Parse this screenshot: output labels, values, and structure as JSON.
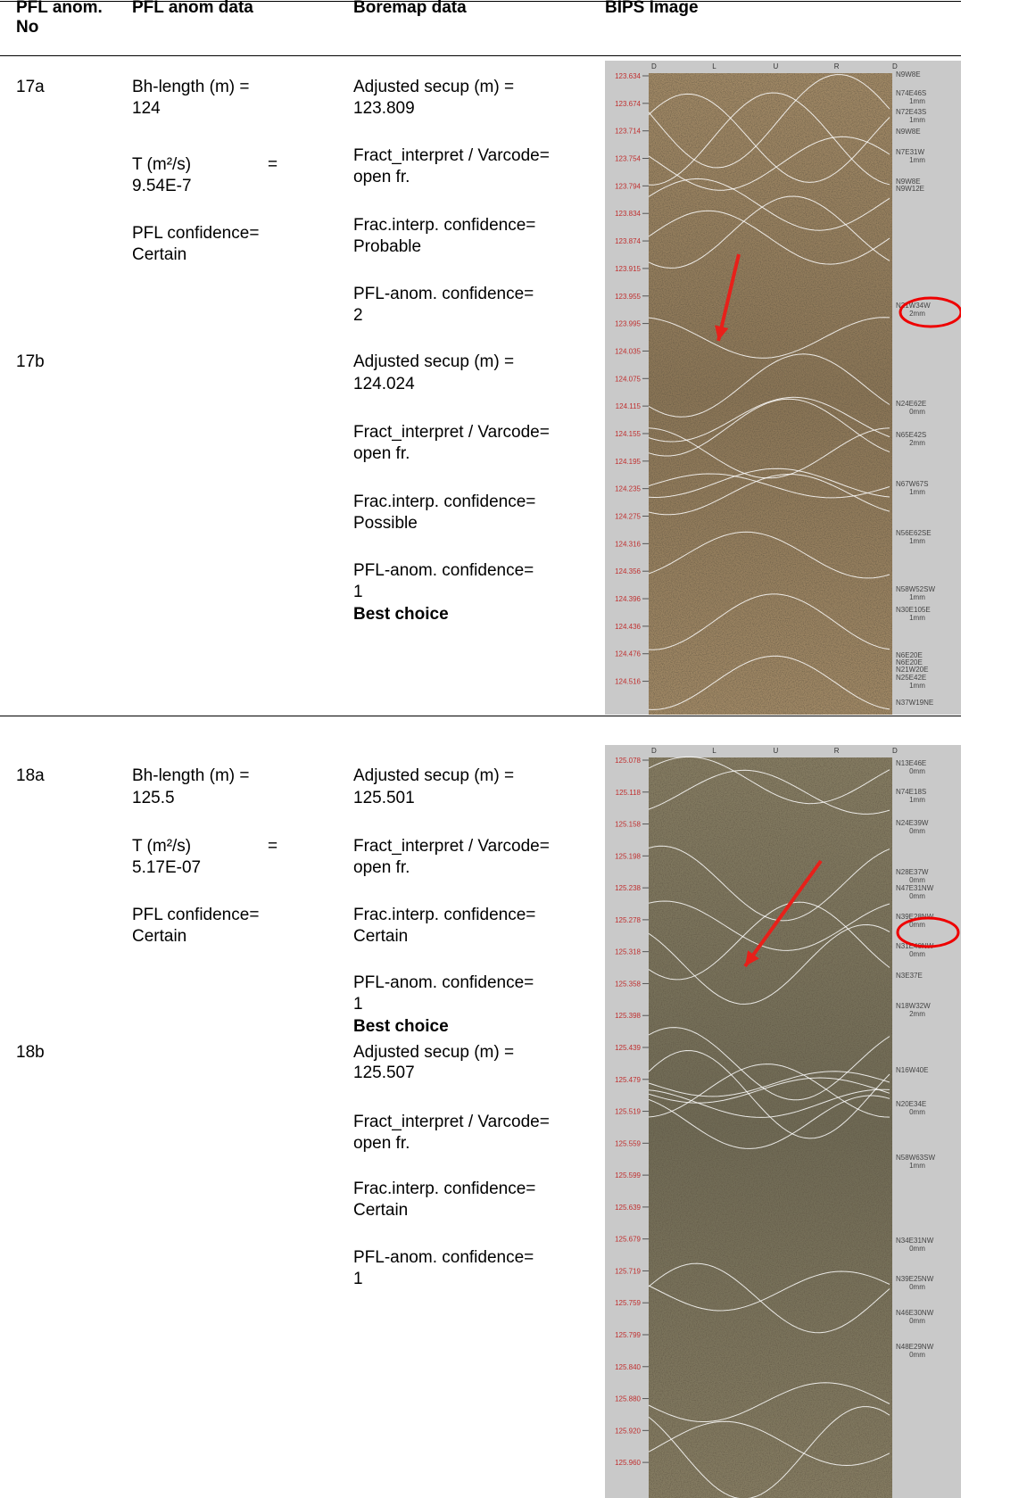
{
  "header": {
    "columns": [
      "PFL anom. No",
      "PFL anom data",
      "Boremap data",
      "BIPS Image"
    ]
  },
  "rows": [
    {
      "id": "17a",
      "pfl_data": [
        "Bh-length (m) =",
        "124",
        "T (m²/s)",
        "=",
        "9.54E-7",
        "PFL confidence=",
        "Certain"
      ],
      "boremap": [
        "Adjusted secup (m) =",
        "123.809",
        "Fract_interpret / Varcode=",
        "open fr.",
        "Frac.interp. confidence=",
        "Probable",
        "PFL-anom. confidence=",
        "2"
      ]
    },
    {
      "id": "17b",
      "boremap": [
        "Adjusted secup (m) =",
        "124.024",
        "Fract_interpret / Varcode=",
        "open fr.",
        "Frac.interp. confidence=",
        "Possible",
        "PFL-anom. confidence=",
        "1",
        "Best choice"
      ]
    },
    {
      "id": "18a",
      "pfl_data": [
        "Bh-length (m) =",
        "125.5",
        "T (m²/s)",
        "=",
        "5.17E-07",
        "PFL confidence=",
        "Certain"
      ],
      "boremap": [
        "Adjusted secup (m) =",
        "125.501",
        "Fract_interpret / Varcode=",
        "open fr.",
        "Frac.interp. confidence=",
        "Certain",
        "PFL-anom. confidence=",
        "1",
        "Best choice"
      ]
    },
    {
      "id": "18b",
      "boremap": [
        "Adjusted secup (m) =",
        "125.507",
        "Fract_interpret / Varcode=",
        "open fr.",
        "Frac.interp. confidence=",
        "Certain",
        "PFL-anom. confidence=",
        "1"
      ]
    }
  ],
  "images": [
    {
      "azimuth": [
        "D",
        "L",
        "U",
        "R",
        "D"
      ],
      "depths": [
        "123.634",
        "123.674",
        "123.714",
        "123.754",
        "123.794",
        "123.834",
        "123.874",
        "123.915",
        "123.955",
        "123.995",
        "124.035",
        "124.075",
        "124.115",
        "124.155",
        "124.195",
        "124.235",
        "124.275",
        "124.316",
        "124.356",
        "124.396",
        "124.436",
        "124.476",
        "124.516"
      ],
      "fractures": [
        [
          "N9W8E"
        ],
        [
          "N74E46S",
          "1mm"
        ],
        [
          "N72E43S",
          "1mm"
        ],
        [
          "N9W8E"
        ],
        [
          "N7E31W",
          "1mm"
        ],
        [
          "N9W8E"
        ],
        [
          "N9W12E"
        ],
        [
          "N21W34W",
          "2mm"
        ],
        [
          "N24E62E",
          "0mm"
        ],
        [
          "N65E42S",
          "2mm"
        ],
        [
          "N67W67S",
          "1mm"
        ],
        [
          "N56E62SE",
          "1mm"
        ],
        [
          "N58W52SW",
          "1mm"
        ],
        [
          "N30E105E",
          "1mm"
        ],
        [
          "N6E20E"
        ],
        [
          "N6E20E"
        ],
        [
          "N21W20E"
        ],
        [
          "N25E42E",
          "1mm"
        ],
        [
          "N37W19NE"
        ]
      ]
    },
    {
      "azimuth": [
        "D",
        "L",
        "U",
        "R",
        "D"
      ],
      "depths": [
        "125.078",
        "125.118",
        "125.158",
        "125.198",
        "125.238",
        "125.278",
        "125.318",
        "125.358",
        "125.398",
        "125.439",
        "125.479",
        "125.519",
        "125.559",
        "125.599",
        "125.639",
        "125.679",
        "125.719",
        "125.759",
        "125.799",
        "125.840",
        "125.880",
        "125.920",
        "125.960"
      ],
      "fractures": [
        [
          "N13E46E",
          "0mm"
        ],
        [
          "N74E18S",
          "1mm"
        ],
        [
          "N24E39W",
          "0mm"
        ],
        [
          "N28E37W",
          "0mm"
        ],
        [
          "N47E31NW",
          "0mm"
        ],
        [
          "N39E28NW",
          "0mm"
        ],
        [
          "N31E40NW",
          "0mm"
        ],
        [
          "N3E37E"
        ],
        [
          "N18W32W",
          "2mm"
        ],
        [
          "N16W40E"
        ],
        [
          "N20E34E",
          "0mm"
        ],
        [
          "N58W63SW",
          "1mm"
        ],
        [
          "N34E31NW",
          "0mm"
        ],
        [
          "N39E25NW",
          "0mm"
        ],
        [
          "N46E30NW",
          "0mm"
        ],
        [
          "N48E29NW",
          "0mm"
        ]
      ]
    }
  ]
}
